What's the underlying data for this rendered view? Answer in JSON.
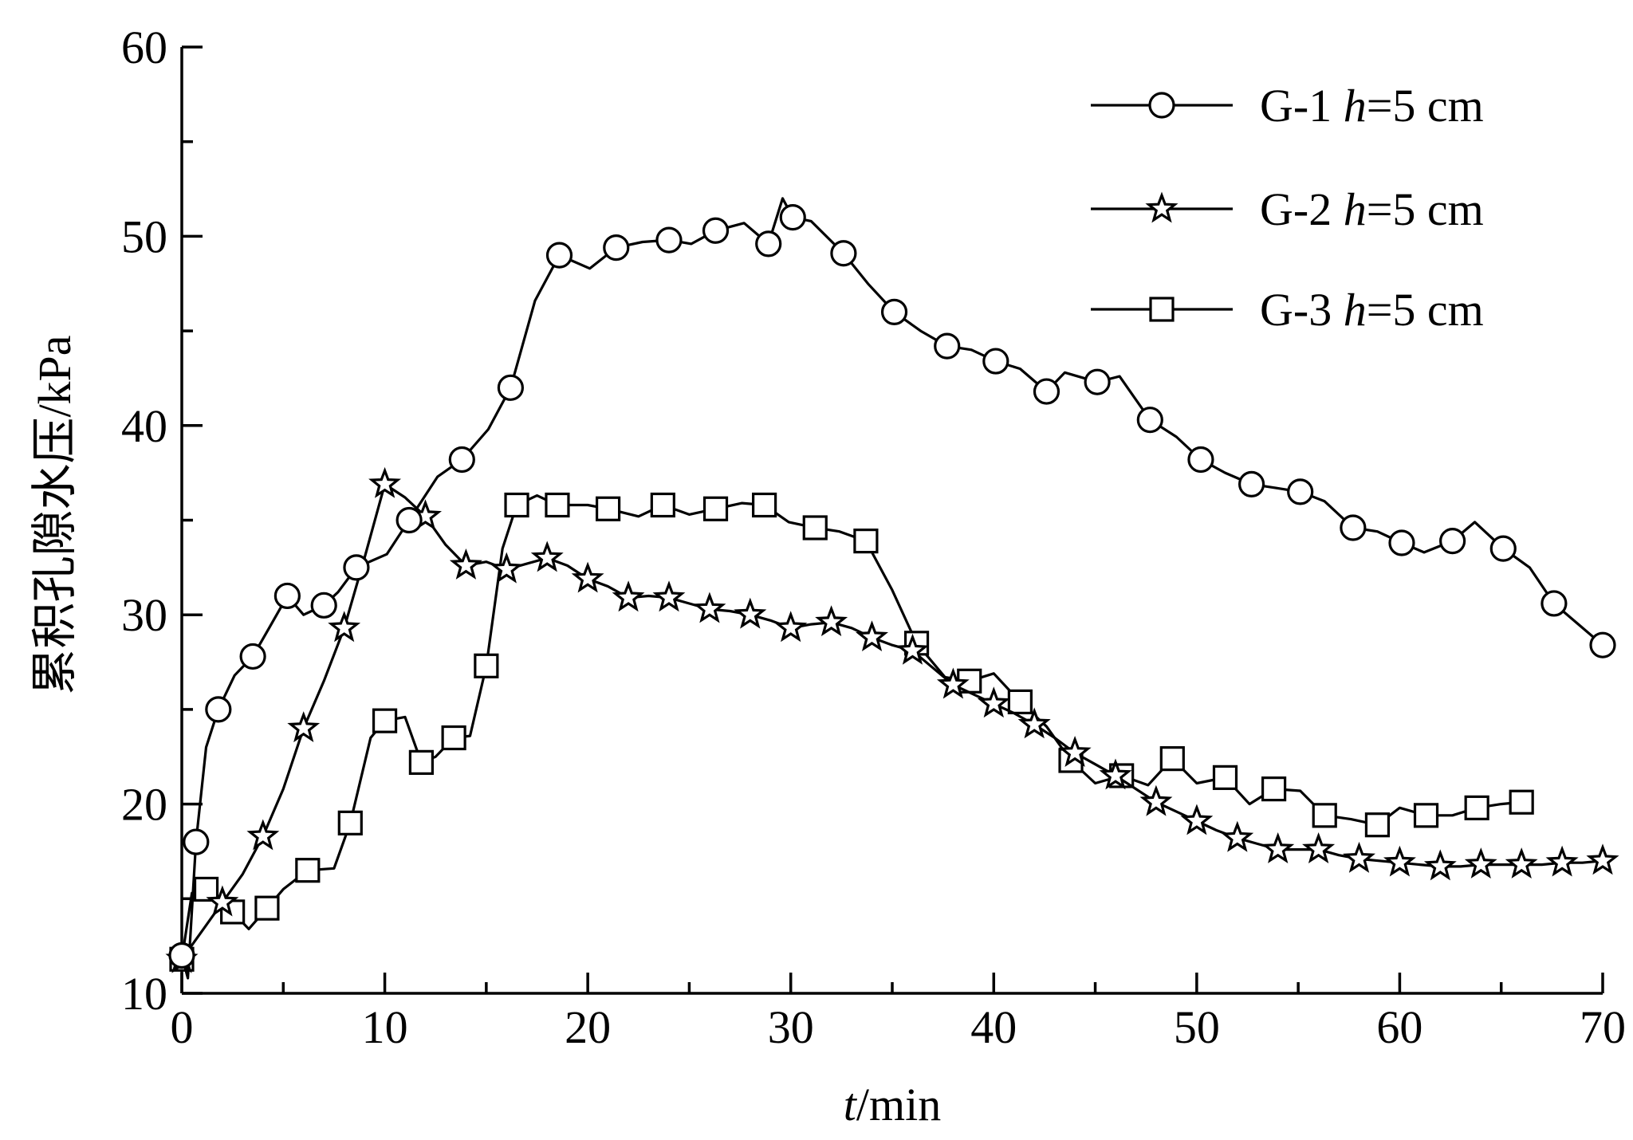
{
  "chart_data": {
    "type": "line",
    "xlabel_italic": "t",
    "xlabel_rest": "/min",
    "ylabel": "累积孔隙水压/kPa",
    "xlim": [
      0,
      70
    ],
    "ylim": [
      10,
      60
    ],
    "xticks": [
      0,
      10,
      20,
      30,
      40,
      50,
      60,
      70
    ],
    "yticks": [
      10,
      20,
      30,
      40,
      50,
      60
    ],
    "grid": false,
    "legend_position": "top-right",
    "series": [
      {
        "name": "G-1 h=5 cm",
        "legend_prefix": "G-1 ",
        "legend_italic": "h",
        "legend_suffix": "=5 cm",
        "marker": "circle",
        "values": [
          [
            0,
            12
          ],
          [
            0.3,
            10.8
          ],
          [
            0.7,
            18
          ],
          [
            1.2,
            23
          ],
          [
            1.8,
            25
          ],
          [
            2.6,
            26.8
          ],
          [
            3.5,
            27.8
          ],
          [
            4.3,
            29.3
          ],
          [
            5.2,
            31
          ],
          [
            6,
            30
          ],
          [
            7,
            30.5
          ],
          [
            7.7,
            31.2
          ],
          [
            8.6,
            32.5
          ],
          [
            10.1,
            33.2
          ],
          [
            11.2,
            35
          ],
          [
            12.6,
            37.3
          ],
          [
            13.8,
            38.2
          ],
          [
            15.1,
            39.8
          ],
          [
            16.2,
            42
          ],
          [
            17.4,
            46.6
          ],
          [
            18.6,
            49
          ],
          [
            20.1,
            48.3
          ],
          [
            21.4,
            49.4
          ],
          [
            22.7,
            49.7
          ],
          [
            24,
            49.8
          ],
          [
            25.1,
            49.6
          ],
          [
            26.3,
            50.3
          ],
          [
            27.7,
            50.7
          ],
          [
            28.9,
            49.6
          ],
          [
            29.6,
            52
          ],
          [
            30.1,
            51
          ],
          [
            31,
            50.8
          ],
          [
            32.6,
            49.1
          ],
          [
            33.8,
            47.5
          ],
          [
            35.1,
            46
          ],
          [
            36.4,
            45
          ],
          [
            37.7,
            44.2
          ],
          [
            38.9,
            44
          ],
          [
            40.1,
            43.4
          ],
          [
            41.3,
            43
          ],
          [
            42.6,
            41.8
          ],
          [
            43.5,
            42.8
          ],
          [
            45.1,
            42.3
          ],
          [
            46.2,
            42.6
          ],
          [
            47.7,
            40.3
          ],
          [
            49,
            39.4
          ],
          [
            50.2,
            38.2
          ],
          [
            51.4,
            37.5
          ],
          [
            52.7,
            36.9
          ],
          [
            53.9,
            36.7
          ],
          [
            55.1,
            36.5
          ],
          [
            56.3,
            36
          ],
          [
            57.7,
            34.6
          ],
          [
            58.9,
            34.4
          ],
          [
            60.1,
            33.8
          ],
          [
            61.2,
            33.3
          ],
          [
            62.6,
            33.9
          ],
          [
            63.7,
            34.9
          ],
          [
            65.1,
            33.5
          ],
          [
            66.4,
            32.5
          ],
          [
            67.6,
            30.6
          ],
          [
            68.8,
            29.5
          ],
          [
            70,
            28.4
          ]
        ]
      },
      {
        "name": "G-2 h=5 cm",
        "legend_prefix": "G-2 ",
        "legend_italic": "h",
        "legend_suffix": "=5 cm",
        "marker": "star",
        "values": [
          [
            0,
            11.8
          ],
          [
            1,
            13.3
          ],
          [
            2,
            14.8
          ],
          [
            3,
            16.3
          ],
          [
            4,
            18.3
          ],
          [
            5,
            20.8
          ],
          [
            6,
            24
          ],
          [
            7,
            26.5
          ],
          [
            8,
            29.3
          ],
          [
            9,
            33
          ],
          [
            10,
            36.9
          ],
          [
            11,
            36.2
          ],
          [
            12,
            35.2
          ],
          [
            13,
            33.7
          ],
          [
            14,
            32.6
          ],
          [
            15,
            32.8
          ],
          [
            16,
            32.4
          ],
          [
            17,
            32.7
          ],
          [
            18,
            33
          ],
          [
            19,
            32.6
          ],
          [
            20,
            31.9
          ],
          [
            21,
            31.5
          ],
          [
            22,
            30.9
          ],
          [
            23,
            31
          ],
          [
            24,
            30.9
          ],
          [
            25,
            30.6
          ],
          [
            26,
            30.3
          ],
          [
            27,
            30.2
          ],
          [
            28,
            30
          ],
          [
            29,
            29.7
          ],
          [
            30,
            29.3
          ],
          [
            31,
            29.5
          ],
          [
            32,
            29.6
          ],
          [
            33,
            29.3
          ],
          [
            34,
            28.8
          ],
          [
            35,
            28.4
          ],
          [
            36,
            28.1
          ],
          [
            37,
            27.2
          ],
          [
            38,
            26.3
          ],
          [
            39,
            25.8
          ],
          [
            40,
            25.3
          ],
          [
            41,
            24.8
          ],
          [
            42,
            24.2
          ],
          [
            43,
            23.5
          ],
          [
            44,
            22.7
          ],
          [
            45,
            22.1
          ],
          [
            46,
            21.5
          ],
          [
            47,
            20.8
          ],
          [
            48,
            20.1
          ],
          [
            49,
            19.6
          ],
          [
            50,
            19.1
          ],
          [
            51,
            18.6
          ],
          [
            52,
            18.2
          ],
          [
            53,
            17.9
          ],
          [
            54,
            17.6
          ],
          [
            55,
            17.6
          ],
          [
            56,
            17.6
          ],
          [
            57,
            17.3
          ],
          [
            58,
            17.1
          ],
          [
            59,
            17
          ],
          [
            60,
            16.9
          ],
          [
            61,
            16.8
          ],
          [
            62,
            16.7
          ],
          [
            63,
            16.7
          ],
          [
            64,
            16.8
          ],
          [
            65,
            16.8
          ],
          [
            66,
            16.8
          ],
          [
            67,
            16.8
          ],
          [
            68,
            16.9
          ],
          [
            69,
            16.9
          ],
          [
            70,
            17
          ]
        ]
      },
      {
        "name": "G-3 h=5 cm",
        "legend_prefix": "G-3 ",
        "legend_italic": "h",
        "legend_suffix": "=5 cm",
        "marker": "square",
        "values": [
          [
            0,
            11.8
          ],
          [
            0.5,
            15.3
          ],
          [
            1.2,
            15.5
          ],
          [
            1.8,
            15
          ],
          [
            2.5,
            14.3
          ],
          [
            3.3,
            13.4
          ],
          [
            4.2,
            14.5
          ],
          [
            5,
            15.5
          ],
          [
            6.2,
            16.5
          ],
          [
            7.5,
            16.6
          ],
          [
            8.3,
            19
          ],
          [
            9.3,
            23.5
          ],
          [
            10,
            24.4
          ],
          [
            11,
            24.6
          ],
          [
            11.8,
            22.2
          ],
          [
            12.5,
            22.5
          ],
          [
            13.4,
            23.5
          ],
          [
            14.2,
            23.6
          ],
          [
            15,
            27.3
          ],
          [
            15.8,
            33.5
          ],
          [
            16.5,
            35.8
          ],
          [
            17.5,
            36.3
          ],
          [
            18.5,
            35.8
          ],
          [
            20,
            35.8
          ],
          [
            21,
            35.6
          ],
          [
            22.5,
            35.2
          ],
          [
            23.7,
            35.8
          ],
          [
            25,
            35.3
          ],
          [
            26.3,
            35.6
          ],
          [
            27.6,
            35.9
          ],
          [
            28.7,
            35.8
          ],
          [
            29.9,
            34.9
          ],
          [
            31.2,
            34.6
          ],
          [
            32.4,
            34.4
          ],
          [
            33.7,
            33.9
          ],
          [
            35,
            31.3
          ],
          [
            36.2,
            28.5
          ],
          [
            37.6,
            26.7
          ],
          [
            38.8,
            26.5
          ],
          [
            40,
            26.9
          ],
          [
            41.3,
            25.4
          ],
          [
            42.6,
            24.1
          ],
          [
            43.8,
            22.3
          ],
          [
            45,
            21.1
          ],
          [
            46.3,
            21.5
          ],
          [
            47.6,
            21
          ],
          [
            48.8,
            22.4
          ],
          [
            50,
            21.1
          ],
          [
            51.4,
            21.4
          ],
          [
            52.6,
            20
          ],
          [
            53.8,
            20.8
          ],
          [
            55.1,
            20.7
          ],
          [
            56.3,
            19.4
          ],
          [
            57.6,
            19.2
          ],
          [
            58.9,
            18.9
          ],
          [
            60,
            19.8
          ],
          [
            61.3,
            19.4
          ],
          [
            62.6,
            19.4
          ],
          [
            63.8,
            19.8
          ],
          [
            65,
            20
          ],
          [
            66,
            20.1
          ]
        ]
      }
    ]
  }
}
